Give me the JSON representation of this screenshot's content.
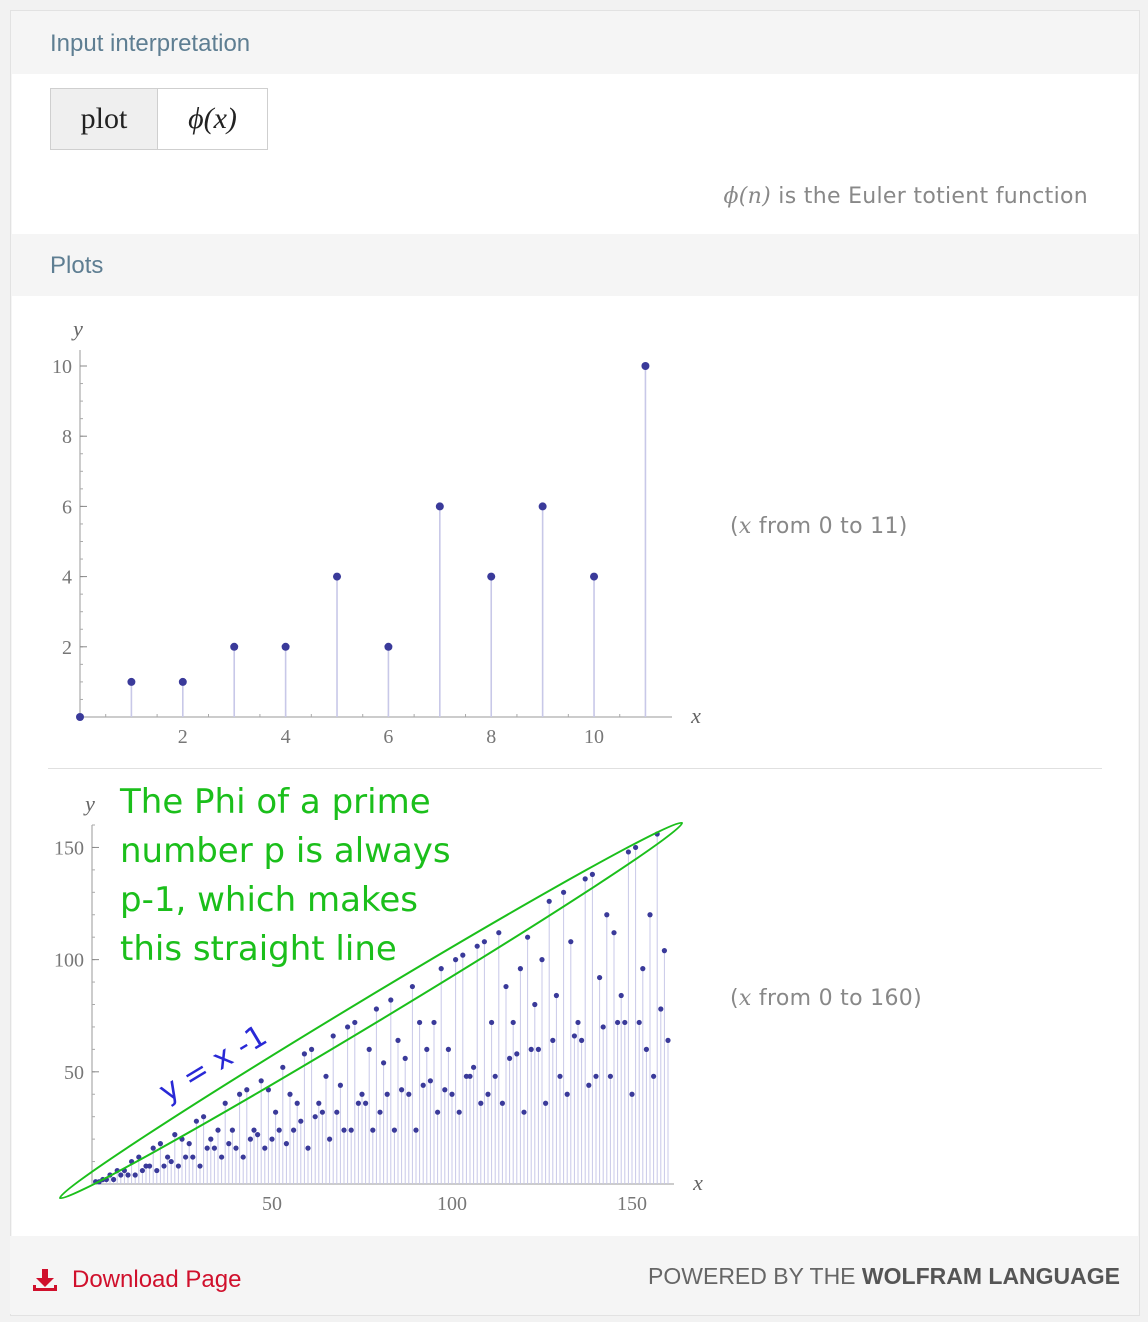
{
  "input_interpretation": {
    "title": "Input interpretation",
    "command": "plot",
    "function": "ϕ(x)",
    "note_func": "ϕ(n)",
    "note_text": " is the Euler totient function"
  },
  "plots": {
    "title": "Plots",
    "range1": "from 0 to 11",
    "range2": "from 0 to 160"
  },
  "annotation": {
    "text": "The Phi of a prime number p is always p-1, which makes this straight line",
    "line_label": "y = x -1",
    "color": "#1bbf1b",
    "line_label_color": "#2929d6"
  },
  "footer": {
    "download_label": "Download Page",
    "powered_prefix": "POWERED BY THE ",
    "powered_brand": "WOLFRAM LANGUAGE"
  },
  "chart_data": [
    {
      "type": "scatter",
      "style": "stem",
      "xlabel": "x",
      "ylabel": "y",
      "x": [
        0,
        1,
        2,
        3,
        4,
        5,
        6,
        7,
        8,
        9,
        10,
        11
      ],
      "y": [
        0,
        1,
        1,
        2,
        2,
        4,
        2,
        6,
        4,
        6,
        4,
        10
      ],
      "xlim": [
        0,
        11.4
      ],
      "ylim": [
        0,
        10
      ],
      "xticks": [
        2,
        4,
        6,
        8,
        10
      ],
      "yticks": [
        2,
        4,
        6,
        8,
        10
      ],
      "point_color": "#3a3a9a",
      "stem_color": "#c8c8e8"
    },
    {
      "type": "scatter",
      "style": "stem",
      "xlabel": "x",
      "ylabel": "y",
      "x_range": [
        1,
        160
      ],
      "y": "phi(x)",
      "xlim": [
        0,
        160
      ],
      "ylim": [
        0,
        160
      ],
      "xticks": [
        50,
        100,
        150
      ],
      "yticks": [
        50,
        100,
        150
      ],
      "point_color": "#3a3a9a",
      "stem_color": "#c8c8e8"
    }
  ]
}
